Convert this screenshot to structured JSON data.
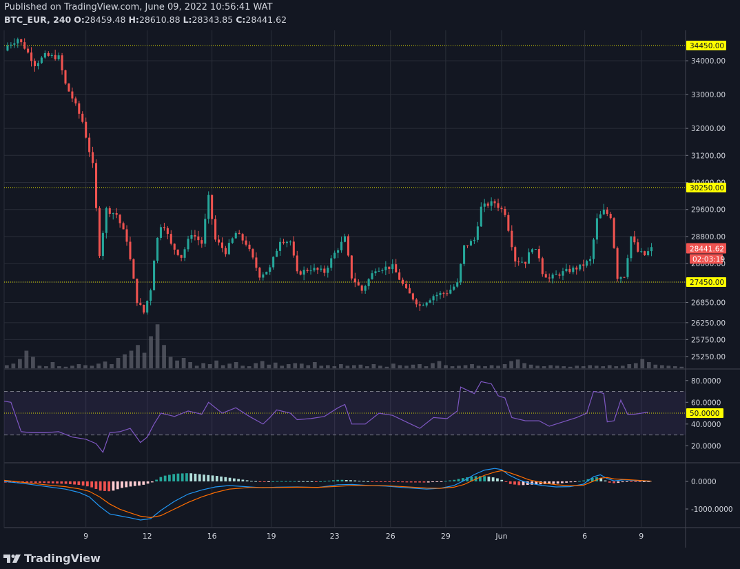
{
  "header": {
    "published": "Published on TradingView.com, June 09, 2022 10:56:41 WAT",
    "symbol": "BTC_EUR, 240",
    "o_label": "O:",
    "o_value": "28459.48",
    "h_label": "H:",
    "h_value": "28610.88",
    "l_label": "L:",
    "l_value": "28343.85",
    "c_label": "C:",
    "c_value": "28441.62"
  },
  "footer": {
    "brand": "TradingView"
  },
  "colors": {
    "background": "#131722",
    "grid": "#2a2e39",
    "up": "#26a69a",
    "down": "#ef5350",
    "level_line": "#e5e500",
    "rsi": "#7e57c2",
    "macd": "#2196f3",
    "signal": "#ff6d00",
    "hist_up": "#26a69a",
    "hist_down": "#ef5350",
    "hist_up_weak": "#b2dfdb",
    "hist_down_weak": "#ffcdd2"
  },
  "chart_data": {
    "type": "candlestick",
    "price_axis_ticks": [
      "34000.00",
      "33000.00",
      "32000.00",
      "31200.00",
      "30400.00",
      "29600.00",
      "28800.00",
      "28000.00",
      "27450.00",
      "26850.00",
      "26250.00",
      "25750.00",
      "25250.00"
    ],
    "price_tick_values": [
      34000,
      33000,
      32000,
      31200,
      30400,
      29600,
      28800,
      28000,
      27450,
      26850,
      26250,
      25750,
      25250
    ],
    "price_range": [
      24900,
      34900
    ],
    "horizontal_levels": [
      {
        "value": 34450,
        "label": "34450.00"
      },
      {
        "value": 30250,
        "label": "30250.00"
      },
      {
        "value": 27450,
        "label": "27450.00"
      }
    ],
    "last_price": {
      "value": 28441.62,
      "label": "28441.62",
      "countdown": "02:03:19"
    },
    "x_labels": [
      {
        "text": "9",
        "pos": 0.12
      },
      {
        "text": "12",
        "pos": 0.21
      },
      {
        "text": "16",
        "pos": 0.305
      },
      {
        "text": "19",
        "pos": 0.392
      },
      {
        "text": "23",
        "pos": 0.485
      },
      {
        "text": "26",
        "pos": 0.567
      },
      {
        "text": "29",
        "pos": 0.648
      },
      {
        "text": "Jun",
        "pos": 0.73
      },
      {
        "text": "6",
        "pos": 0.852
      },
      {
        "text": "9",
        "pos": 0.935
      }
    ],
    "rsi": {
      "ticks": [
        "80.0000",
        "60.0000",
        "40.0000",
        "20.0000"
      ],
      "tick_values": [
        80,
        60,
        40,
        20
      ],
      "range": [
        5,
        90
      ],
      "upper": 70,
      "lower": 30,
      "mid": 50,
      "mid_label": "50.0000"
    },
    "macd": {
      "ticks": [
        "0.0000",
        "-1000.0000"
      ],
      "tick_values": [
        0,
        -1000
      ],
      "range": [
        -1650,
        650
      ]
    },
    "key_points": [
      [
        0,
        34300
      ],
      [
        0.005,
        34450
      ],
      [
        0.02,
        34650
      ],
      [
        0.03,
        34400
      ],
      [
        0.045,
        33900
      ],
      [
        0.06,
        34150
      ],
      [
        0.08,
        34100
      ],
      [
        0.09,
        33300
      ],
      [
        0.1,
        32900
      ],
      [
        0.115,
        32200
      ],
      [
        0.13,
        30900
      ],
      [
        0.14,
        28300
      ],
      [
        0.15,
        29600
      ],
      [
        0.165,
        29450
      ],
      [
        0.18,
        28700
      ],
      [
        0.195,
        26900
      ],
      [
        0.205,
        26550
      ],
      [
        0.215,
        27250
      ],
      [
        0.222,
        28500
      ],
      [
        0.232,
        29300
      ],
      [
        0.245,
        28550
      ],
      [
        0.26,
        28200
      ],
      [
        0.275,
        28900
      ],
      [
        0.29,
        28600
      ],
      [
        0.3,
        29950
      ],
      [
        0.31,
        28700
      ],
      [
        0.325,
        28350
      ],
      [
        0.34,
        28900
      ],
      [
        0.355,
        28600
      ],
      [
        0.375,
        27650
      ],
      [
        0.39,
        27850
      ],
      [
        0.405,
        28700
      ],
      [
        0.42,
        28650
      ],
      [
        0.43,
        27700
      ],
      [
        0.45,
        27850
      ],
      [
        0.47,
        27750
      ],
      [
        0.485,
        28300
      ],
      [
        0.5,
        28750
      ],
      [
        0.51,
        27600
      ],
      [
        0.525,
        27200
      ],
      [
        0.545,
        27850
      ],
      [
        0.57,
        27900
      ],
      [
        0.59,
        27200
      ],
      [
        0.61,
        26750
      ],
      [
        0.63,
        27050
      ],
      [
        0.65,
        27150
      ],
      [
        0.665,
        27400
      ],
      [
        0.675,
        28500
      ],
      [
        0.69,
        28700
      ],
      [
        0.7,
        29650
      ],
      [
        0.71,
        29750
      ],
      [
        0.72,
        29800
      ],
      [
        0.735,
        29500
      ],
      [
        0.75,
        28100
      ],
      [
        0.765,
        28050
      ],
      [
        0.775,
        28500
      ],
      [
        0.785,
        28200
      ],
      [
        0.79,
        27750
      ],
      [
        0.8,
        27550
      ],
      [
        0.815,
        27700
      ],
      [
        0.83,
        27800
      ],
      [
        0.845,
        27900
      ],
      [
        0.86,
        28100
      ],
      [
        0.87,
        29300
      ],
      [
        0.88,
        29550
      ],
      [
        0.89,
        29400
      ],
      [
        0.9,
        27600
      ],
      [
        0.91,
        27650
      ],
      [
        0.92,
        28800
      ],
      [
        0.93,
        28350
      ],
      [
        0.94,
        28250
      ],
      [
        0.95,
        28440
      ]
    ],
    "rsi_points": [
      [
        0,
        61
      ],
      [
        0.01,
        60
      ],
      [
        0.025,
        33
      ],
      [
        0.04,
        32
      ],
      [
        0.06,
        32
      ],
      [
        0.08,
        33
      ],
      [
        0.1,
        28
      ],
      [
        0.12,
        26
      ],
      [
        0.135,
        22
      ],
      [
        0.145,
        14
      ],
      [
        0.155,
        32
      ],
      [
        0.17,
        33
      ],
      [
        0.185,
        36
      ],
      [
        0.2,
        23
      ],
      [
        0.21,
        28
      ],
      [
        0.22,
        40
      ],
      [
        0.23,
        50
      ],
      [
        0.25,
        47
      ],
      [
        0.27,
        52
      ],
      [
        0.29,
        49
      ],
      [
        0.3,
        60
      ],
      [
        0.32,
        50
      ],
      [
        0.34,
        55
      ],
      [
        0.36,
        47
      ],
      [
        0.38,
        40
      ],
      [
        0.39,
        46
      ],
      [
        0.4,
        53
      ],
      [
        0.42,
        50
      ],
      [
        0.43,
        44
      ],
      [
        0.45,
        45
      ],
      [
        0.47,
        47
      ],
      [
        0.49,
        55
      ],
      [
        0.5,
        58
      ],
      [
        0.51,
        40
      ],
      [
        0.53,
        40
      ],
      [
        0.55,
        50
      ],
      [
        0.57,
        48
      ],
      [
        0.59,
        42
      ],
      [
        0.61,
        36
      ],
      [
        0.63,
        46
      ],
      [
        0.65,
        45
      ],
      [
        0.665,
        52
      ],
      [
        0.67,
        74
      ],
      [
        0.69,
        68
      ],
      [
        0.7,
        79
      ],
      [
        0.715,
        77
      ],
      [
        0.725,
        66
      ],
      [
        0.735,
        64
      ],
      [
        0.745,
        46
      ],
      [
        0.765,
        43
      ],
      [
        0.785,
        43
      ],
      [
        0.8,
        38
      ],
      [
        0.82,
        42
      ],
      [
        0.84,
        46
      ],
      [
        0.855,
        50
      ],
      [
        0.865,
        70
      ],
      [
        0.875,
        69
      ],
      [
        0.88,
        68
      ],
      [
        0.885,
        42
      ],
      [
        0.895,
        43
      ],
      [
        0.905,
        62
      ],
      [
        0.915,
        49
      ],
      [
        0.925,
        49
      ],
      [
        0.935,
        50
      ],
      [
        0.945,
        51
      ]
    ],
    "macd_points": [
      [
        0,
        0
      ],
      [
        0.03,
        -80
      ],
      [
        0.06,
        -180
      ],
      [
        0.09,
        -280
      ],
      [
        0.11,
        -400
      ],
      [
        0.125,
        -560
      ],
      [
        0.14,
        -900
      ],
      [
        0.155,
        -1180
      ],
      [
        0.17,
        -1250
      ],
      [
        0.185,
        -1320
      ],
      [
        0.2,
        -1400
      ],
      [
        0.215,
        -1350
      ],
      [
        0.23,
        -1050
      ],
      [
        0.25,
        -720
      ],
      [
        0.27,
        -460
      ],
      [
        0.29,
        -310
      ],
      [
        0.31,
        -200
      ],
      [
        0.33,
        -150
      ],
      [
        0.36,
        -200
      ],
      [
        0.38,
        -230
      ],
      [
        0.4,
        -210
      ],
      [
        0.43,
        -200
      ],
      [
        0.46,
        -220
      ],
      [
        0.49,
        -120
      ],
      [
        0.51,
        -110
      ],
      [
        0.53,
        -140
      ],
      [
        0.56,
        -170
      ],
      [
        0.59,
        -230
      ],
      [
        0.62,
        -280
      ],
      [
        0.64,
        -250
      ],
      [
        0.66,
        -150
      ],
      [
        0.675,
        30
      ],
      [
        0.69,
        250
      ],
      [
        0.705,
        410
      ],
      [
        0.72,
        470
      ],
      [
        0.73,
        430
      ],
      [
        0.74,
        240
      ],
      [
        0.755,
        60
      ],
      [
        0.77,
        -60
      ],
      [
        0.79,
        -150
      ],
      [
        0.81,
        -200
      ],
      [
        0.83,
        -190
      ],
      [
        0.85,
        -100
      ],
      [
        0.865,
        170
      ],
      [
        0.875,
        240
      ],
      [
        0.885,
        100
      ],
      [
        0.895,
        20
      ],
      [
        0.91,
        60
      ],
      [
        0.93,
        20
      ],
      [
        0.95,
        0
      ]
    ],
    "signal_points": [
      [
        0,
        40
      ],
      [
        0.03,
        -40
      ],
      [
        0.06,
        -120
      ],
      [
        0.09,
        -190
      ],
      [
        0.11,
        -270
      ],
      [
        0.125,
        -360
      ],
      [
        0.14,
        -560
      ],
      [
        0.155,
        -820
      ],
      [
        0.17,
        -1010
      ],
      [
        0.185,
        -1140
      ],
      [
        0.2,
        -1260
      ],
      [
        0.215,
        -1310
      ],
      [
        0.23,
        -1240
      ],
      [
        0.25,
        -1000
      ],
      [
        0.27,
        -760
      ],
      [
        0.29,
        -560
      ],
      [
        0.31,
        -400
      ],
      [
        0.33,
        -280
      ],
      [
        0.36,
        -220
      ],
      [
        0.38,
        -220
      ],
      [
        0.4,
        -220
      ],
      [
        0.43,
        -210
      ],
      [
        0.46,
        -215
      ],
      [
        0.49,
        -180
      ],
      [
        0.51,
        -150
      ],
      [
        0.53,
        -145
      ],
      [
        0.56,
        -155
      ],
      [
        0.59,
        -195
      ],
      [
        0.62,
        -240
      ],
      [
        0.64,
        -250
      ],
      [
        0.66,
        -210
      ],
      [
        0.675,
        -110
      ],
      [
        0.69,
        60
      ],
      [
        0.705,
        220
      ],
      [
        0.72,
        340
      ],
      [
        0.73,
        390
      ],
      [
        0.74,
        330
      ],
      [
        0.755,
        200
      ],
      [
        0.77,
        60
      ],
      [
        0.79,
        -50
      ],
      [
        0.81,
        -120
      ],
      [
        0.83,
        -160
      ],
      [
        0.85,
        -140
      ],
      [
        0.865,
        10
      ],
      [
        0.875,
        120
      ],
      [
        0.885,
        140
      ],
      [
        0.895,
        90
      ],
      [
        0.91,
        70
      ],
      [
        0.93,
        40
      ],
      [
        0.95,
        10
      ]
    ],
    "volume_heights": [
      0.06,
      0.09,
      0.18,
      0.34,
      0.22,
      0.05,
      0.04,
      0.12,
      0.04,
      0.03,
      0.05,
      0.08,
      0.06,
      0.05,
      0.09,
      0.13,
      0.08,
      0.2,
      0.27,
      0.34,
      0.45,
      0.3,
      0.62,
      0.85,
      0.45,
      0.22,
      0.15,
      0.2,
      0.12,
      0.05,
      0.1,
      0.08,
      0.15,
      0.06,
      0.09,
      0.12,
      0.05,
      0.04,
      0.1,
      0.14,
      0.07,
      0.11,
      0.05,
      0.08,
      0.1,
      0.09,
      0.06,
      0.12,
      0.05,
      0.06,
      0.04,
      0.08,
      0.05,
      0.06,
      0.07,
      0.04,
      0.08,
      0.05,
      0.03,
      0.09,
      0.06,
      0.05,
      0.07,
      0.08,
      0.04,
      0.1,
      0.14,
      0.06,
      0.04,
      0.05,
      0.06,
      0.08,
      0.05,
      0.04,
      0.06,
      0.05,
      0.08,
      0.14,
      0.17,
      0.1,
      0.07,
      0.05,
      0.04,
      0.06,
      0.05,
      0.04,
      0.03,
      0.05,
      0.04,
      0.06,
      0.05,
      0.04,
      0.06,
      0.04,
      0.05,
      0.08,
      0.1,
      0.18,
      0.12,
      0.07,
      0.06,
      0.05,
      0.04,
      0.03
    ]
  }
}
